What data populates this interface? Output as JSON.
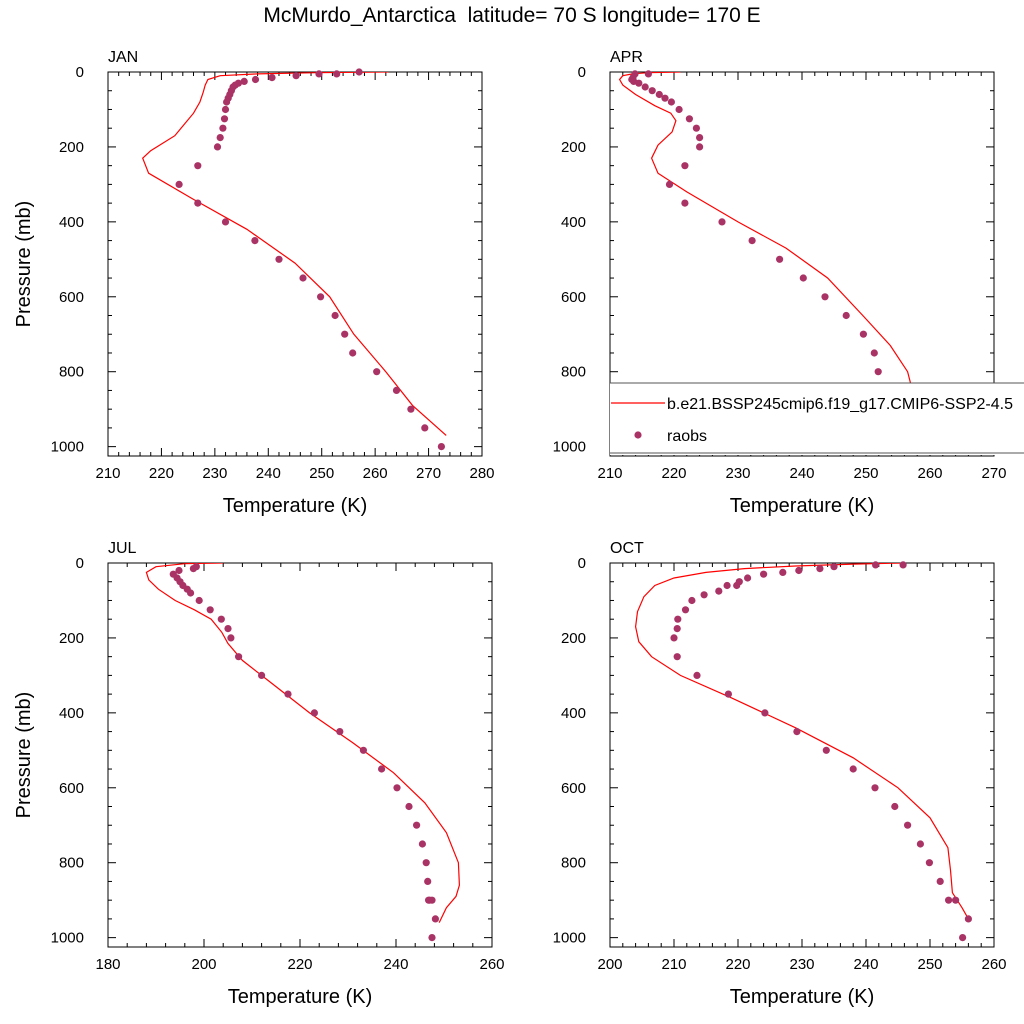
{
  "title": "McMurdo_Antarctica  latitude= 70 S longitude= 170 E",
  "legend": {
    "model_label": "b.e21.BSSP245cmip6.f19_g17.CMIP6-SSP2-4.5",
    "obs_label": "raobs",
    "location": "lower-right of APR panel"
  },
  "colors": {
    "model_line": "#ff0000",
    "obs_marker": "#aa3366",
    "axis": "#000000"
  },
  "chart_data": [
    {
      "type": "line",
      "title": "JAN",
      "xlabel": "Temperature (K)",
      "ylabel": "Pressure (mb)",
      "xlim": [
        210,
        280
      ],
      "ylim": [
        1025,
        0
      ],
      "xticks": [
        210,
        220,
        230,
        240,
        250,
        260,
        270,
        280
      ],
      "yticks": [
        0,
        200,
        400,
        600,
        800,
        1000
      ],
      "series": [
        {
          "name": "b.e21.BSSP245cmip6.f19_g17.CMIP6-SSP2-4.5",
          "style": "line",
          "x": [
            262.5,
            249,
            238,
            231,
            228.7,
            228.2,
            227.8,
            227.2,
            226,
            222.5,
            218,
            216.5,
            217.6,
            226,
            236,
            245,
            251.5,
            256,
            262,
            267,
            273.3
          ],
          "y": [
            0,
            2,
            5,
            10,
            20,
            35,
            55,
            80,
            110,
            170,
            210,
            230,
            270,
            340,
            420,
            510,
            600,
            700,
            800,
            890,
            970
          ]
        },
        {
          "name": "raobs",
          "style": "marker",
          "x": [
            257,
            252.8,
            249.5,
            245.2,
            240.7,
            237.6,
            235.5,
            234.4,
            233.8,
            233.4,
            233.1,
            232.8,
            232.5,
            232.2,
            232,
            231.8,
            231.5,
            231,
            230.5,
            226.8,
            223.3,
            226.8,
            232,
            237.5,
            242,
            246.5,
            249.8,
            252.5,
            254.3,
            255.8,
            260.3,
            264,
            266.7,
            269.3,
            272.4
          ],
          "y": [
            0,
            5,
            5,
            10,
            15,
            20,
            25,
            30,
            35,
            40,
            50,
            60,
            70,
            80,
            100,
            125,
            150,
            175,
            200,
            250,
            300,
            350,
            400,
            450,
            500,
            550,
            600,
            650,
            700,
            750,
            800,
            850,
            900,
            950,
            1000
          ]
        }
      ]
    },
    {
      "type": "line",
      "title": "APR",
      "xlabel": "Temperature (K)",
      "ylabel": "",
      "xlim": [
        210,
        270
      ],
      "ylim": [
        1025,
        0
      ],
      "xticks": [
        210,
        220,
        230,
        240,
        250,
        260,
        270
      ],
      "yticks": [
        0,
        200,
        400,
        600,
        800,
        1000
      ],
      "series": [
        {
          "name": "b.e21.BSSP245cmip6.f19_g17.CMIP6-SSP2-4.5",
          "style": "line",
          "x": [
            221,
            216,
            213.5,
            212,
            211.5,
            212,
            214,
            217,
            219.5,
            220.3,
            219.7,
            217.5,
            216.5,
            217.5,
            222,
            230,
            237.5,
            244,
            249.5,
            253.8,
            256.5,
            258,
            260.5
          ],
          "y": [
            0,
            2,
            5,
            10,
            20,
            35,
            60,
            90,
            110,
            130,
            160,
            195,
            230,
            270,
            320,
            400,
            470,
            550,
            650,
            730,
            800,
            900,
            960
          ]
        },
        {
          "name": "raobs",
          "style": "marker",
          "x": [
            216,
            213.9,
            213.6,
            213.4,
            213.7,
            214.5,
            215.5,
            216.6,
            217.7,
            218.6,
            219.6,
            220.8,
            222.4,
            223.5,
            224,
            224,
            221.7,
            219.3,
            221.7,
            227.5,
            232.2,
            236.5,
            240.2,
            243.6,
            246.9,
            249.6,
            251.3,
            251.9,
            252.2,
            252.3,
            252.7,
            253.9,
            256,
            256.3
          ],
          "y": [
            5,
            5,
            15,
            20,
            25,
            30,
            40,
            50,
            60,
            70,
            80,
            100,
            125,
            150,
            175,
            200,
            250,
            300,
            350,
            400,
            450,
            500,
            550,
            600,
            650,
            700,
            750,
            800,
            850,
            900,
            900,
            900,
            950,
            1000
          ]
        }
      ]
    },
    {
      "type": "line",
      "title": "JUL",
      "xlabel": "Temperature (K)",
      "ylabel": "Pressure (mb)",
      "xlim": [
        180,
        260
      ],
      "ylim": [
        1025,
        0
      ],
      "xticks": [
        180,
        200,
        220,
        240,
        260
      ],
      "yticks": [
        0,
        200,
        400,
        600,
        800,
        1000
      ],
      "series": [
        {
          "name": "b.e21.BSSP245cmip6.f19_g17.CMIP6-SSP2-4.5",
          "style": "line",
          "x": [
            204,
            196,
            190,
            188,
            188.5,
            190.5,
            194,
            198,
            201.5,
            203.7,
            205,
            208,
            214,
            222,
            231,
            239.5,
            246,
            250.5,
            253,
            253.2,
            252.5,
            250.5,
            249
          ],
          "y": [
            0,
            2,
            10,
            25,
            45,
            70,
            100,
            125,
            150,
            185,
            215,
            260,
            320,
            400,
            480,
            560,
            640,
            720,
            800,
            860,
            890,
            920,
            960
          ]
        },
        {
          "name": "raobs",
          "style": "marker",
          "x": [
            198.4,
            197.8,
            194.8,
            193.6,
            194.4,
            195,
            195.6,
            196.5,
            197.2,
            199,
            201.3,
            203.6,
            205,
            205.6,
            207.2,
            212,
            217.5,
            223,
            228.3,
            233.2,
            237,
            240.2,
            242.7,
            244.3,
            245.5,
            246.3,
            246.6,
            246.8,
            247,
            247.5,
            248.2,
            247.5
          ],
          "y": [
            10,
            15,
            20,
            30,
            40,
            50,
            60,
            70,
            80,
            100,
            125,
            150,
            175,
            200,
            250,
            300,
            350,
            400,
            450,
            500,
            550,
            600,
            650,
            700,
            750,
            800,
            850,
            900,
            900,
            900,
            950,
            1000
          ]
        }
      ]
    },
    {
      "type": "line",
      "title": "OCT",
      "xlabel": "Temperature (K)",
      "ylabel": "",
      "xlim": [
        200,
        260
      ],
      "ylim": [
        1025,
        0
      ],
      "xticks": [
        200,
        210,
        220,
        230,
        240,
        250,
        260
      ],
      "yticks": [
        0,
        200,
        400,
        600,
        800,
        1000
      ],
      "series": [
        {
          "name": "b.e21.BSSP245cmip6.f19_g17.CMIP6-SSP2-4.5",
          "style": "line",
          "x": [
            246,
            238,
            229,
            221,
            215,
            210,
            207,
            205.3,
            204.3,
            204,
            204.5,
            206.5,
            211,
            219,
            229,
            238,
            245,
            250,
            252.8,
            253.2,
            253.5,
            255,
            256
          ],
          "y": [
            0,
            3,
            8,
            15,
            25,
            40,
            60,
            90,
            130,
            170,
            210,
            250,
            300,
            360,
            440,
            520,
            600,
            680,
            760,
            820,
            880,
            920,
            950
          ]
        },
        {
          "name": "raobs",
          "style": "marker",
          "x": [
            245.8,
            241.5,
            235,
            232.8,
            229.5,
            227,
            224,
            221.5,
            220.2,
            219.8,
            218.3,
            217,
            214.7,
            212.8,
            211.8,
            210.6,
            210.5,
            210,
            210.5,
            213.6,
            218.5,
            224.2,
            229.2,
            233.8,
            238,
            241.4,
            244.5,
            246.5,
            248.5,
            249.9,
            251.6,
            252.9,
            254,
            256,
            255.1
          ],
          "y": [
            5,
            5,
            10,
            15,
            20,
            25,
            30,
            40,
            50,
            60,
            60,
            75,
            85,
            100,
            125,
            150,
            175,
            200,
            250,
            300,
            350,
            400,
            450,
            500,
            550,
            600,
            650,
            700,
            750,
            800,
            850,
            900,
            900,
            950,
            1000
          ]
        }
      ]
    }
  ]
}
